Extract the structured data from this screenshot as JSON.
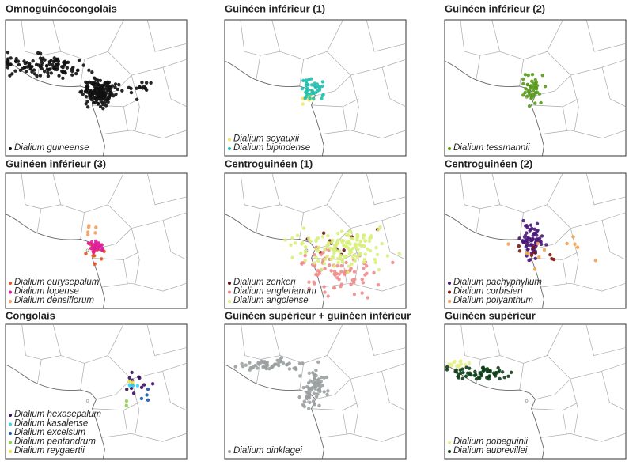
{
  "panels": [
    {
      "title": "Omnoguinéocongolais",
      "species": [
        {
          "name": "Dialium guineense",
          "color": "#111111"
        }
      ]
    },
    {
      "title": "Guinéen inférieur (1)",
      "species": [
        {
          "name": "Dialium soyauxii",
          "color": "#f5e66a"
        },
        {
          "name": "Dialium bipindense",
          "color": "#20c0b0"
        }
      ]
    },
    {
      "title": "Guinéen inférieur (2)",
      "species": [
        {
          "name": "Dialium tessmannii",
          "color": "#5a9a1a"
        }
      ]
    },
    {
      "title": "Guinéen inférieur (3)",
      "species": [
        {
          "name": "Dialium eurysepalum",
          "color": "#e8501e"
        },
        {
          "name": "Dialium lopense",
          "color": "#e0209a"
        },
        {
          "name": "Dialium densiflorum",
          "color": "#f4a060"
        }
      ]
    },
    {
      "title": "Centroguinéen (1)",
      "species": [
        {
          "name": "Dialium zenkeri",
          "color": "#6b0f0f"
        },
        {
          "name": "Dialium englerianum",
          "color": "#f08c8c"
        },
        {
          "name": "Dialium angolense",
          "color": "#d8f07a"
        }
      ]
    },
    {
      "title": "Centroguinéen (2)",
      "species": [
        {
          "name": "Dialium pachyphyllum",
          "color": "#4b1a7a"
        },
        {
          "name": "Dialium corbisieri",
          "color": "#7a1a10"
        },
        {
          "name": "Dialium polyanthum",
          "color": "#f4a050"
        }
      ]
    },
    {
      "title": "Congolais",
      "species": [
        {
          "name": "Dialium hexasepalum",
          "color": "#3a1060"
        },
        {
          "name": "Dialium kasalense",
          "color": "#40d0f0"
        },
        {
          "name": "Dialium excelsum",
          "color": "#1a5aa8"
        },
        {
          "name": "Dialium pentandrum",
          "color": "#90d050"
        },
        {
          "name": "Dialium reygaertii",
          "color": "#f0e040"
        }
      ]
    },
    {
      "title": "Guinéen supérieur + guinéen inférieur",
      "species": [
        {
          "name": "Dialium dinklagei",
          "color": "#9aa0a0"
        }
      ]
    },
    {
      "title": "Guinéen supérieur",
      "species": [
        {
          "name": "Dialium pobeguinii",
          "color": "#e6f08a"
        },
        {
          "name": "Dialium aubrevillei",
          "color": "#10401a"
        }
      ]
    }
  ]
}
